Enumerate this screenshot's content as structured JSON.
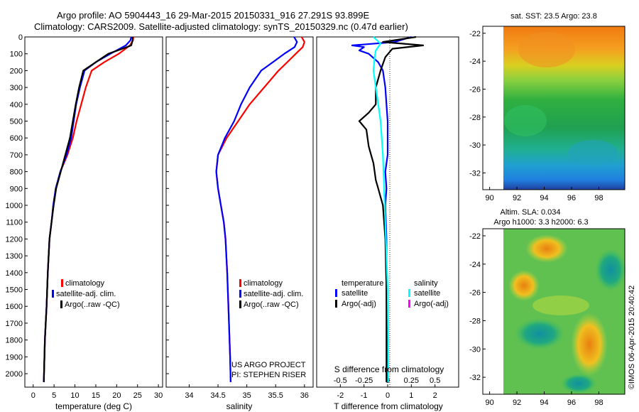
{
  "header": {
    "line1": "Argo profile: AO 5904443_16 29-Mar-2015 20150331_916 27.291S 93.899E",
    "line2": "Climatology: CARS2009. Satellite-adjusted climatology: synTS_20150329.nc (0.47d earlier)"
  },
  "colors": {
    "climatology": "#ff0000",
    "satellite": "#0000ff",
    "argo": "#000000",
    "sal_satellite": "#00ffff",
    "sal_argo": "#ff00ff"
  },
  "chart_data": [
    {
      "id": "temperature",
      "type": "line",
      "xlabel": "temperature (deg C)",
      "xlim": [
        -2,
        31
      ],
      "ylim": [
        2080,
        0
      ],
      "xticks": [
        0,
        5,
        10,
        15,
        20,
        25,
        30
      ],
      "yticks": [
        0,
        100,
        200,
        300,
        400,
        500,
        600,
        700,
        800,
        900,
        1000,
        1100,
        1200,
        1300,
        1400,
        1500,
        1600,
        1700,
        1800,
        1900,
        2000
      ],
      "legend": [
        "climatology",
        "satellite-adj. clim.",
        "Argo(..raw -QC)"
      ],
      "series": [
        {
          "name": "climatology",
          "color": "#ff0000",
          "x": [
            24.0,
            23.9,
            23.2,
            20.5,
            17.0,
            14.0,
            12.6,
            11.5,
            10.4,
            9.5,
            8.2,
            6.5,
            5.4,
            4.8,
            4.4,
            3.9,
            3.5,
            3.2,
            3.0,
            2.8,
            2.7,
            2.6,
            2.55
          ],
          "y": [
            0,
            20,
            50,
            100,
            150,
            200,
            300,
            400,
            500,
            600,
            700,
            800,
            900,
            1000,
            1100,
            1200,
            1400,
            1600,
            1700,
            1800,
            1900,
            2000,
            2050
          ]
        },
        {
          "name": "satellite-adj. clim.",
          "color": "#0000ff",
          "x": [
            23.5,
            23.3,
            22.2,
            18.5,
            15.0,
            12.3,
            11.2,
            10.3,
            9.7,
            9.1,
            8.0,
            6.5,
            5.4,
            4.8,
            4.4,
            3.9,
            3.5,
            3.2,
            3.0,
            2.8,
            2.7,
            2.6,
            2.55
          ],
          "y": [
            0,
            20,
            50,
            100,
            150,
            200,
            300,
            400,
            500,
            600,
            700,
            800,
            900,
            1000,
            1100,
            1200,
            1400,
            1600,
            1700,
            1800,
            1900,
            2000,
            2050
          ]
        },
        {
          "name": "Argo(..raw -QC)",
          "color": "#000000",
          "x": [
            23.8,
            23.8,
            23.5,
            22.5,
            18.0,
            15.0,
            12.0,
            11.0,
            10.2,
            9.5,
            8.8,
            6.6,
            5.5,
            4.9,
            4.4,
            3.9,
            3.5,
            3.2,
            3.0,
            2.8,
            2.7,
            2.6,
            2.55
          ],
          "y": [
            0,
            20,
            50,
            60,
            100,
            150,
            200,
            300,
            400,
            500,
            600,
            800,
            900,
            1000,
            1100,
            1200,
            1400,
            1600,
            1700,
            1800,
            1900,
            2000,
            2050
          ]
        }
      ]
    },
    {
      "id": "salinity",
      "type": "line",
      "xlabel": "salinity",
      "xlim": [
        33.6,
        36.15
      ],
      "ylim": [
        2080,
        0
      ],
      "xticks": [
        34,
        34.5,
        35,
        35.5,
        36
      ],
      "legend": [
        "climatology",
        "satellite-adj. clim.",
        "Argo(..raw -QC)"
      ],
      "annotation": [
        "US ARGO PROJECT",
        "PI: STEPHEN RISER"
      ],
      "series": [
        {
          "name": "climatology",
          "color": "#ff0000",
          "x": [
            35.95,
            36.0,
            35.97,
            35.85,
            35.7,
            35.55,
            35.3,
            35.05,
            34.85,
            34.65,
            34.5,
            34.47,
            34.5,
            34.55,
            34.6,
            34.63,
            34.66,
            34.68,
            34.69,
            34.7,
            34.71,
            34.72
          ],
          "y": [
            0,
            30,
            60,
            100,
            150,
            200,
            300,
            400,
            500,
            600,
            700,
            800,
            900,
            1000,
            1100,
            1200,
            1400,
            1600,
            1700,
            1800,
            1900,
            2050
          ]
        },
        {
          "name": "satellite-adj. clim.",
          "color": "#0000ff",
          "x": [
            35.82,
            35.87,
            35.83,
            35.65,
            35.45,
            35.25,
            35.05,
            34.9,
            34.78,
            34.62,
            34.5,
            34.47,
            34.5,
            34.55,
            34.6,
            34.63,
            34.66,
            34.68,
            34.69,
            34.7,
            34.71,
            34.72
          ],
          "y": [
            0,
            30,
            60,
            100,
            150,
            200,
            300,
            400,
            500,
            600,
            700,
            800,
            900,
            1000,
            1100,
            1200,
            1400,
            1600,
            1700,
            1800,
            1900,
            2050
          ]
        }
      ]
    },
    {
      "id": "difference",
      "type": "line",
      "xlabel": "T difference from climatology",
      "xlabel_top": "S difference from climatology",
      "xlim": [
        -3,
        3
      ],
      "ylim": [
        2080,
        0
      ],
      "xticks": [
        -2,
        -1,
        0,
        1,
        2
      ],
      "top_ticks": [
        "-0.5",
        "-0.25",
        "0",
        "0.25",
        "0.5"
      ],
      "top_tick_x": [
        -2.0,
        -1.0,
        0.0,
        1.0,
        2.0
      ],
      "legend_temperature": "temperature",
      "legend_salinity": "salinity",
      "legend_items": [
        "satellite",
        "Argo(-adj)",
        "satellite",
        "Argo(-adj)"
      ],
      "series": [
        {
          "name": "satellite",
          "color": "#0000ff",
          "x": [
            1.0,
            0.3,
            -1.5,
            -1.0,
            -1.2,
            -0.8,
            -0.4,
            -0.2,
            -0.1,
            -0.05,
            0.0,
            0.0,
            0.0,
            -0.1,
            -0.05,
            -0.1,
            -0.05,
            -0.05,
            -0.03,
            0.0
          ],
          "y": [
            0,
            30,
            50,
            60,
            80,
            100,
            150,
            200,
            300,
            400,
            500,
            600,
            700,
            800,
            900,
            1000,
            1200,
            1500,
            1800,
            2050
          ]
        },
        {
          "name": "Argo(-adj)",
          "color": "#000000",
          "x": [
            1.2,
            -0.2,
            1.5,
            0.2,
            -0.1,
            -0.3,
            -0.5,
            -0.5,
            -0.8,
            -1.2,
            -0.9,
            -0.8,
            -0.6,
            -0.5,
            -0.4,
            -0.3,
            -0.2,
            -0.1,
            -0.05,
            -0.05
          ],
          "y": [
            0,
            30,
            50,
            70,
            120,
            200,
            300,
            400,
            450,
            500,
            550,
            650,
            750,
            850,
            900,
            950,
            1000,
            1200,
            1500,
            2050
          ]
        },
        {
          "name": "satellite",
          "color": "#00ffff",
          "x": [
            -0.6,
            -0.3,
            -0.5,
            -0.55,
            -0.6,
            -0.5,
            -0.4,
            -0.3,
            -0.2,
            -0.15,
            -0.1,
            -0.05,
            0.0,
            0.02,
            0.02
          ],
          "y": [
            0,
            40,
            80,
            120,
            200,
            300,
            400,
            500,
            700,
            900,
            1100,
            1300,
            1500,
            1800,
            2050
          ]
        }
      ]
    },
    {
      "id": "sst_map",
      "type": "heatmap",
      "title": "sat. SST: 23.5 Argo: 23.8",
      "xticks": [
        90,
        92,
        94,
        96,
        98
      ],
      "yticks": [
        -22,
        -24,
        -26,
        -28,
        -30,
        -32
      ],
      "xlim": [
        89.5,
        99.9
      ],
      "ylim": [
        -33.2,
        -21.5
      ]
    },
    {
      "id": "sla_map",
      "type": "heatmap",
      "title": [
        "Altim. SLA: 0.034",
        "Argo h1000: 3.3 h2000: 6.3"
      ],
      "xticks": [
        90,
        92,
        94,
        96,
        98
      ],
      "yticks": [
        -22,
        -24,
        -26,
        -28,
        -30,
        -32
      ],
      "xlim": [
        89.5,
        99.9
      ],
      "ylim": [
        -33.2,
        -21.5
      ]
    }
  ],
  "footer": {
    "imos_stamp": "©IMOS 06-Apr-2015 20:40:42"
  }
}
